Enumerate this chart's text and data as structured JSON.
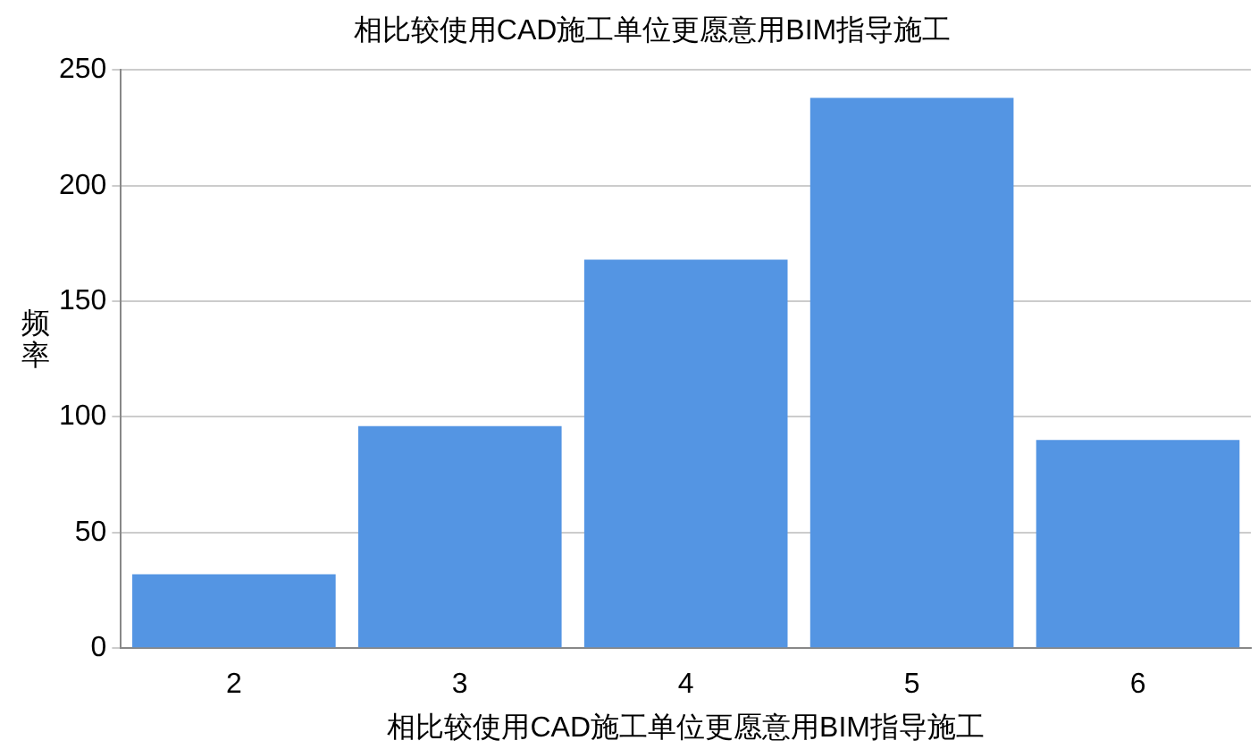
{
  "chart_data": {
    "type": "bar",
    "title": "相比较使用CAD施工单位更愿意用BIM指导施工",
    "xlabel": "相比较使用CAD施工单位更愿意用BIM指导施工",
    "ylabel": "频率",
    "categories": [
      "2",
      "3",
      "4",
      "5",
      "6"
    ],
    "values": [
      32,
      96,
      168,
      238,
      90
    ],
    "color": "#5495e3",
    "ylim": [
      0,
      250
    ],
    "yticks": [
      0,
      50,
      100,
      150,
      200,
      250
    ],
    "grid": "y"
  }
}
